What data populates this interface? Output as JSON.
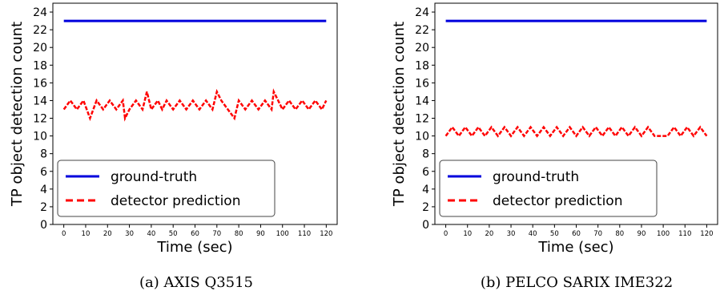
{
  "chart_data": [
    {
      "type": "line",
      "caption": "(a) AXIS Q3515",
      "xlabel": "Time (sec)",
      "ylabel": "TP object detection count",
      "xlim": [
        -5,
        125
      ],
      "ylim": [
        0,
        25
      ],
      "xticks": [
        0,
        10,
        20,
        30,
        40,
        50,
        60,
        70,
        80,
        90,
        100,
        110,
        120
      ],
      "yticks": [
        0,
        2,
        4,
        6,
        8,
        10,
        12,
        14,
        16,
        18,
        20,
        22,
        24
      ],
      "legend_position": "lower-left",
      "series": [
        {
          "name": "ground-truth",
          "color": "#0000dd",
          "style": "solid",
          "x": [
            0,
            120
          ],
          "y": [
            23,
            23
          ]
        },
        {
          "name": "detector prediction",
          "color": "#ff0000",
          "style": "dashed",
          "x": [
            0,
            3,
            6,
            9,
            12,
            15,
            18,
            21,
            24,
            27,
            28,
            30,
            33,
            36,
            38,
            40,
            43,
            45,
            47,
            50,
            53,
            56,
            59,
            62,
            65,
            68,
            70,
            72,
            75,
            78,
            80,
            83,
            86,
            89,
            92,
            95,
            96,
            98,
            100,
            103,
            106,
            109,
            112,
            115,
            118,
            120
          ],
          "y": [
            13,
            14,
            13,
            14,
            12,
            14,
            13,
            14,
            13,
            14,
            12,
            13,
            14,
            13,
            15,
            13,
            14,
            13,
            14,
            13,
            14,
            13,
            14,
            13,
            14,
            13,
            15,
            14,
            13,
            12,
            14,
            13,
            14,
            13,
            14,
            13,
            15,
            14,
            13,
            14,
            13,
            14,
            13,
            14,
            13,
            14
          ]
        }
      ]
    },
    {
      "type": "line",
      "caption": "(b) PELCO SARIX IME322",
      "xlabel": "Time (sec)",
      "ylabel": "TP object detection count",
      "xlim": [
        -5,
        125
      ],
      "ylim": [
        0,
        25
      ],
      "xticks": [
        0,
        10,
        20,
        30,
        40,
        50,
        60,
        70,
        80,
        90,
        100,
        110,
        120
      ],
      "yticks": [
        0,
        2,
        4,
        6,
        8,
        10,
        12,
        14,
        16,
        18,
        20,
        22,
        24
      ],
      "legend_position": "lower-left",
      "series": [
        {
          "name": "ground-truth",
          "color": "#0000dd",
          "style": "solid",
          "x": [
            0,
            120
          ],
          "y": [
            23,
            23
          ]
        },
        {
          "name": "detector prediction",
          "color": "#ff0000",
          "style": "dashed",
          "x": [
            0,
            3,
            6,
            9,
            12,
            15,
            18,
            21,
            24,
            27,
            30,
            33,
            36,
            39,
            42,
            45,
            48,
            51,
            54,
            57,
            60,
            63,
            66,
            69,
            72,
            75,
            78,
            81,
            84,
            87,
            90,
            93,
            96,
            99,
            102,
            105,
            108,
            111,
            114,
            117,
            120
          ],
          "y": [
            10,
            11,
            10,
            11,
            10,
            11,
            10,
            11,
            10,
            11,
            10,
            11,
            10,
            11,
            10,
            11,
            10,
            11,
            10,
            11,
            10,
            11,
            10,
            11,
            10,
            11,
            10,
            11,
            10,
            11,
            10,
            11,
            10,
            10,
            10,
            11,
            10,
            11,
            10,
            11,
            10
          ]
        }
      ]
    }
  ]
}
